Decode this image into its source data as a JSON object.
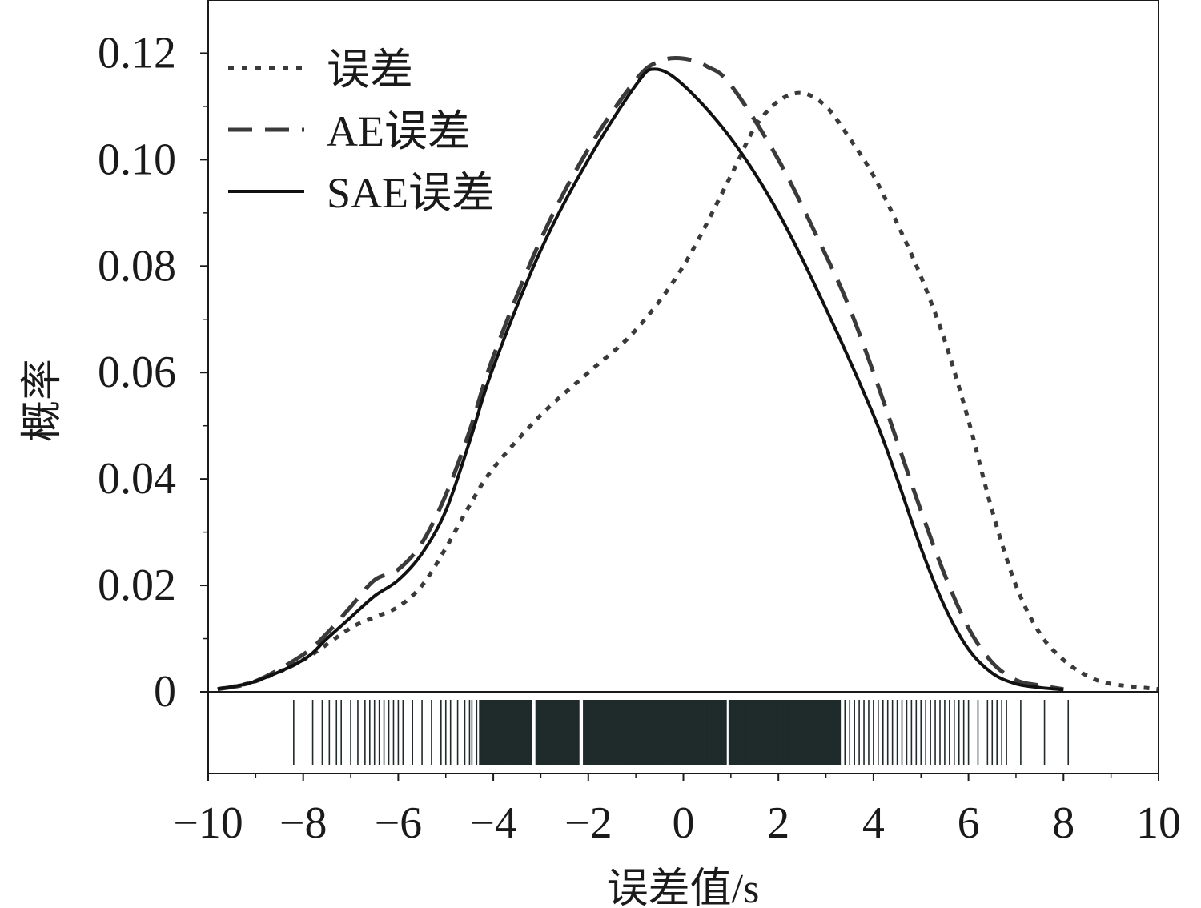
{
  "chart_data": {
    "type": "line",
    "xlabel": "误差值/s",
    "ylabel": "概率",
    "xlim": [
      -10,
      10
    ],
    "ylim": [
      0,
      0.13
    ],
    "x_ticks": [
      -10,
      -8,
      -6,
      -4,
      -2,
      0,
      2,
      4,
      6,
      8,
      10
    ],
    "x_tick_labels": [
      "−10",
      "−8",
      "−6",
      "−4",
      "−2",
      "0",
      "2",
      "4",
      "6",
      "8",
      "10"
    ],
    "y_ticks": [
      0,
      0.02,
      0.04,
      0.06,
      0.08,
      0.1,
      0.12
    ],
    "y_tick_labels": [
      "0",
      "0.02",
      "0.04",
      "0.06",
      "0.08",
      "0.10",
      "0.12"
    ],
    "legend_position": "top-left",
    "grid": false,
    "series": [
      {
        "name": "误差",
        "style": "dotted",
        "color": "#3a3a3a",
        "x": [
          -9.8,
          -9.0,
          -8.0,
          -7.0,
          -6.5,
          -6.0,
          -5.5,
          -5.0,
          -4.5,
          -4.0,
          -3.0,
          -2.0,
          -1.0,
          0.0,
          1.0,
          1.5,
          2.0,
          2.5,
          3.0,
          3.5,
          4.0,
          4.5,
          5.0,
          5.5,
          6.0,
          6.5,
          7.0,
          7.5,
          8.0,
          8.5,
          9.0,
          10.0
        ],
        "y": [
          0.0005,
          0.002,
          0.006,
          0.012,
          0.014,
          0.016,
          0.02,
          0.027,
          0.035,
          0.042,
          0.052,
          0.06,
          0.068,
          0.08,
          0.097,
          0.106,
          0.111,
          0.1125,
          0.11,
          0.104,
          0.097,
          0.088,
          0.078,
          0.066,
          0.051,
          0.034,
          0.02,
          0.011,
          0.006,
          0.003,
          0.0015,
          0.0005
        ]
      },
      {
        "name": "AE误差",
        "style": "dashed",
        "color": "#3a3a3a",
        "x": [
          -9.8,
          -9.0,
          -8.0,
          -7.5,
          -7.0,
          -6.5,
          -6.0,
          -5.5,
          -5.0,
          -4.5,
          -4.0,
          -3.0,
          -2.0,
          -1.0,
          -0.5,
          0.0,
          0.5,
          1.0,
          2.0,
          3.0,
          3.5,
          4.0,
          4.5,
          5.0,
          5.5,
          6.0,
          6.5,
          7.0,
          7.5,
          8.0
        ],
        "y": [
          0.0005,
          0.002,
          0.007,
          0.011,
          0.016,
          0.021,
          0.023,
          0.028,
          0.037,
          0.049,
          0.063,
          0.085,
          0.102,
          0.115,
          0.1185,
          0.119,
          0.1175,
          0.114,
          0.1,
          0.082,
          0.072,
          0.06,
          0.047,
          0.034,
          0.022,
          0.012,
          0.0055,
          0.0022,
          0.0012,
          0.0005
        ]
      },
      {
        "name": "SAE误差",
        "style": "solid",
        "color": "#111111",
        "x": [
          -9.8,
          -9.0,
          -8.0,
          -7.5,
          -7.0,
          -6.5,
          -6.0,
          -5.5,
          -5.0,
          -4.5,
          -4.0,
          -3.0,
          -2.0,
          -1.0,
          -0.6,
          0.0,
          1.0,
          2.0,
          3.0,
          4.0,
          4.5,
          5.0,
          5.5,
          6.0,
          6.5,
          7.0,
          7.5,
          8.0
        ],
        "y": [
          0.0005,
          0.002,
          0.006,
          0.01,
          0.014,
          0.018,
          0.021,
          0.026,
          0.034,
          0.047,
          0.061,
          0.083,
          0.1,
          0.114,
          0.117,
          0.114,
          0.104,
          0.09,
          0.072,
          0.052,
          0.04,
          0.027,
          0.016,
          0.008,
          0.0035,
          0.0015,
          0.0008,
          0.0004
        ]
      }
    ],
    "rug": {
      "color": "#1f2a2a",
      "points": [
        -8.2,
        -7.8,
        -7.6,
        -7.45,
        -7.3,
        -7.2,
        -7.0,
        -6.85,
        -6.7,
        -6.6,
        -6.5,
        -6.4,
        -6.3,
        -6.2,
        -6.1,
        -6.0,
        -5.9,
        -5.7,
        -5.5,
        -5.3,
        -5.1,
        -5.0,
        -4.9,
        -4.75,
        -4.6,
        -4.5,
        -4.45,
        -4.35,
        -4.25,
        -4.2,
        -4.1,
        -4.0,
        -3.95,
        -3.9,
        -3.8,
        -3.7,
        -3.6,
        -3.5,
        -3.4,
        -3.3,
        -3.2,
        -3.1,
        -3.0,
        -2.9,
        -2.8,
        -2.7,
        -2.6,
        -2.5,
        -2.4,
        -2.3,
        -2.2,
        -2.1,
        -2.0,
        -1.9,
        -1.8,
        -1.7,
        -1.6,
        -1.5,
        -1.4,
        -1.3,
        -1.2,
        -1.1,
        -1.0,
        -0.9,
        -0.8,
        -0.7,
        -0.6,
        -0.5,
        -0.4,
        -0.3,
        -0.2,
        -0.1,
        0.0,
        0.1,
        0.2,
        0.3,
        0.4,
        0.5,
        0.6,
        0.7,
        0.8,
        0.9,
        1.0,
        1.1,
        1.2,
        1.3,
        1.4,
        1.5,
        1.6,
        1.7,
        1.8,
        1.9,
        2.0,
        2.1,
        2.2,
        2.3,
        2.4,
        2.5,
        2.6,
        2.7,
        2.8,
        2.9,
        3.0,
        3.1,
        3.2,
        3.3,
        3.4,
        3.5,
        3.6,
        3.7,
        3.8,
        3.9,
        4.0,
        4.1,
        4.2,
        4.3,
        4.4,
        4.5,
        4.6,
        4.7,
        4.8,
        4.9,
        5.0,
        5.1,
        5.2,
        5.3,
        5.4,
        5.5,
        5.6,
        5.7,
        5.8,
        5.9,
        6.0,
        6.2,
        6.4,
        6.5,
        6.6,
        6.7,
        6.8,
        7.1,
        7.6,
        8.1
      ],
      "dense_bands": [
        [
          -4.3,
          -3.2
        ],
        [
          -3.1,
          -2.2
        ],
        [
          -2.1,
          0.9
        ],
        [
          0.95,
          3.3
        ]
      ]
    }
  }
}
